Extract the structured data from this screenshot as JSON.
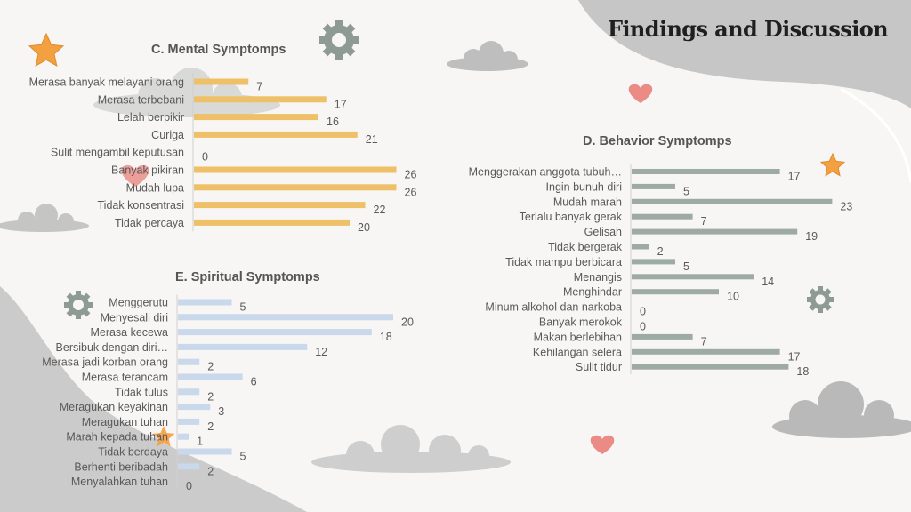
{
  "slide": {
    "title": "Findings and Discussion"
  },
  "colors": {
    "mental": "#eec067",
    "behavior": "#9eaba3",
    "spiritual": "#c9d8ea",
    "label": "#595959"
  },
  "chart_data": [
    {
      "id": "mental",
      "type": "bar",
      "orientation": "horizontal",
      "title": "C. Mental Symptomps",
      "categories": [
        "Merasa banyak melayani orang",
        "Merasa terbebani",
        "Lelah berpikir",
        "Curiga",
        "Sulit mengambil keputusan",
        "Banyak pikiran",
        "Mudah lupa",
        "Tidak konsentrasi",
        "Tidak percaya"
      ],
      "values": [
        7,
        17,
        16,
        21,
        0,
        26,
        26,
        22,
        20
      ],
      "xlim": [
        0,
        26
      ],
      "grid": false
    },
    {
      "id": "behavior",
      "type": "bar",
      "orientation": "horizontal",
      "title": "D. Behavior Symptomps",
      "categories": [
        "Menggerakan anggota tubuh…",
        "Ingin bunuh diri",
        "Mudah marah",
        "Terlalu banyak gerak",
        "Gelisah",
        "Tidak bergerak",
        "Tidak mampu berbicara",
        "Menangis",
        "Menghindar",
        "Minum alkohol dan narkoba",
        "Banyak merokok",
        "Makan berlebihan",
        "Kehilangan selera",
        "Sulit tidur"
      ],
      "values": [
        17,
        5,
        23,
        7,
        19,
        2,
        5,
        14,
        10,
        0,
        0,
        7,
        17,
        18
      ],
      "xlim": [
        0,
        23
      ],
      "grid": false
    },
    {
      "id": "spiritual",
      "type": "bar",
      "orientation": "horizontal",
      "title": "E. Spiritual Symptomps",
      "categories": [
        "Menggerutu",
        "Menyesali diri",
        "Merasa kecewa",
        "Bersibuk dengan diri…",
        "Merasa jadi korban orang",
        "Merasa terancam",
        "Tidak tulus",
        "Meragukan keyakinan",
        "Meragukan tuhan",
        "Marah kepada tuhan",
        "Tidak berdaya",
        "Berhenti beribadah",
        "Menyalahkan tuhan"
      ],
      "values": [
        5,
        20,
        18,
        12,
        2,
        6,
        2,
        3,
        2,
        1,
        5,
        2,
        0
      ],
      "xlim": [
        0,
        20
      ],
      "grid": false
    }
  ]
}
